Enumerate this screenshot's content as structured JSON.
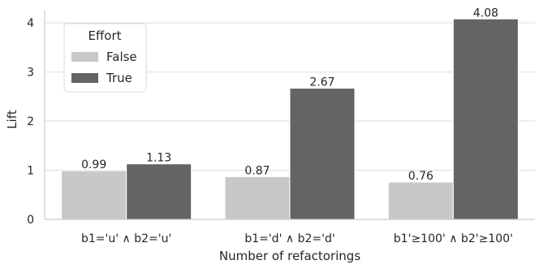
{
  "chart_data": {
    "type": "bar",
    "categories": [
      "b1='u' ∧ b2='u'",
      "b1='d' ∧ b2='d'",
      "b1'≥100' ∧ b2'≥100'"
    ],
    "series": [
      {
        "name": "False",
        "values": [
          0.99,
          0.87,
          0.76
        ],
        "color": "#c8c8c8"
      },
      {
        "name": "True",
        "values": [
          1.13,
          2.67,
          4.08
        ],
        "color": "#646464"
      }
    ],
    "data_labels": [
      [
        "0.99",
        "0.87",
        "0.76"
      ],
      [
        "1.13",
        "2.67",
        "4.08"
      ]
    ],
    "xlabel": "Number of refactorings",
    "ylabel": "Lift",
    "ylim": [
      0,
      4.25
    ],
    "yticks": [
      "0",
      "1",
      "2",
      "3",
      "4"
    ],
    "grid": "horizontal",
    "legend": {
      "title": "Effort",
      "placement": "top-left"
    }
  }
}
